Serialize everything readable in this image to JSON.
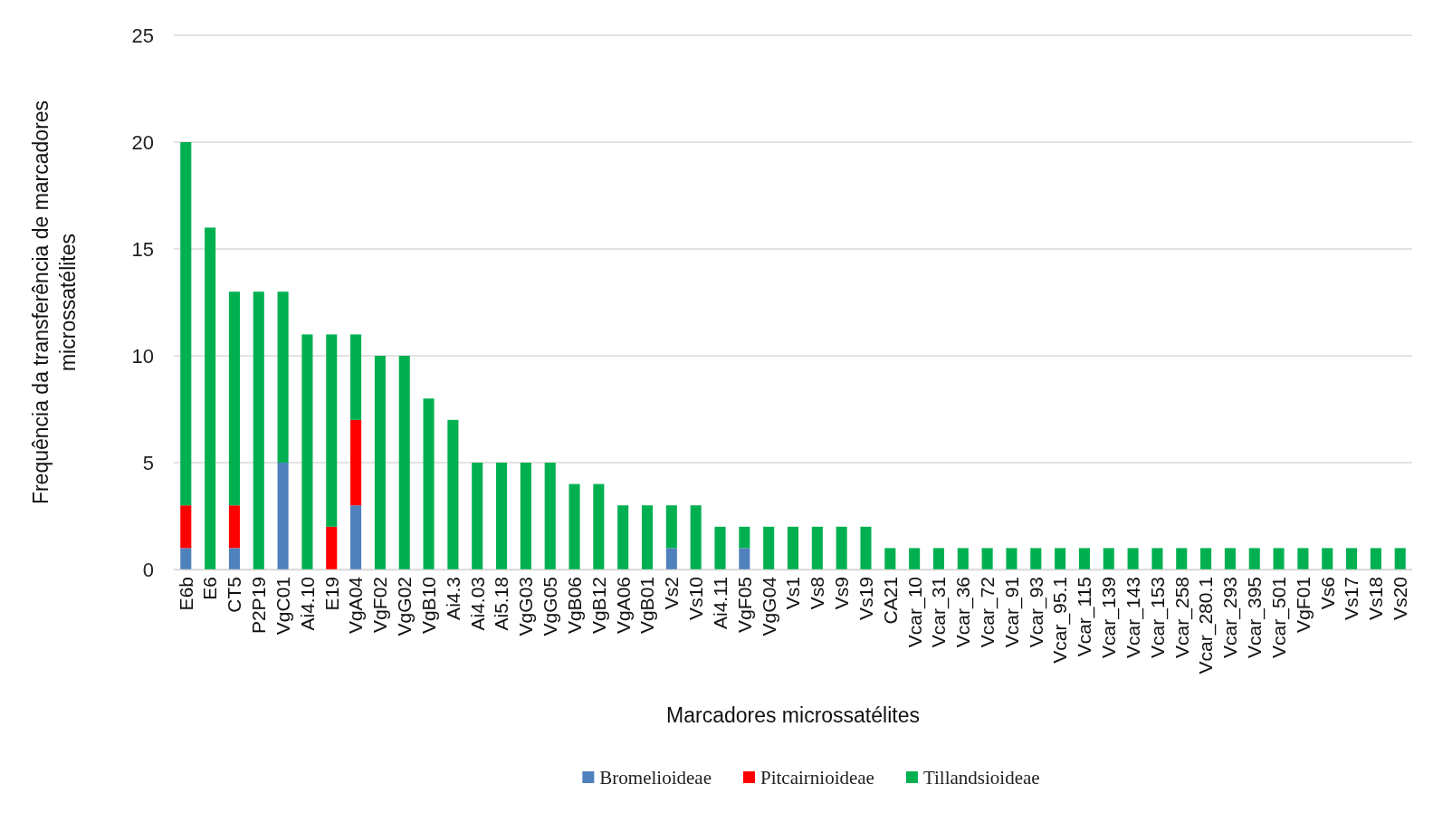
{
  "chart_data": {
    "type": "bar",
    "stacked": true,
    "xlabel": "Marcadores microssatélites",
    "ylabel": "Frequência da transferência de marcadores\nmicrossatélites",
    "categories": [
      "E6b",
      "E6",
      "CT5",
      "P2P19",
      "VgC01",
      "Ai4.10",
      "E19",
      "VgA04",
      "VgF02",
      "VgG02",
      "VgB10",
      "Ai4.3",
      "Ai4.03",
      "Ai5.18",
      "VgG03",
      "VgG05",
      "VgB06",
      "VgB12",
      "VgA06",
      "VgB01",
      "Vs2",
      "Vs10",
      "Ai4.11",
      "VgF05",
      "VgG04",
      "Vs1",
      "Vs8",
      "Vs9",
      "Vs19",
      "CA21",
      "Vcar_10",
      "Vcar_31",
      "Vcar_36",
      "Vcar_72",
      "Vcar_91",
      "Vcar_93",
      "Vcar_95.1",
      "Vcar_115",
      "Vcar_139",
      "Vcar_143",
      "Vcar_153",
      "Vcar_258",
      "Vcar_280.1",
      "Vcar_293",
      "Vcar_395",
      "Vcar_501",
      "VgF01",
      "Vs6",
      "Vs17",
      "Vs18",
      "Vs20"
    ],
    "series": [
      {
        "name": "Bromelioideae",
        "color": "#4f81bd",
        "values": [
          1,
          0,
          1,
          0,
          5,
          0,
          0,
          3,
          0,
          0,
          0,
          0,
          0,
          0,
          0,
          0,
          0,
          0,
          0,
          0,
          1,
          0,
          0,
          1,
          0,
          0,
          0,
          0,
          0,
          0,
          0,
          0,
          0,
          0,
          0,
          0,
          0,
          0,
          0,
          0,
          0,
          0,
          0,
          0,
          0,
          0,
          0,
          0,
          0,
          0,
          0
        ]
      },
      {
        "name": "Pitcairnioideae",
        "color": "#ff0000",
        "values": [
          2,
          0,
          2,
          0,
          0,
          0,
          2,
          4,
          0,
          0,
          0,
          0,
          0,
          0,
          0,
          0,
          0,
          0,
          0,
          0,
          0,
          0,
          0,
          0,
          0,
          0,
          0,
          0,
          0,
          0,
          0,
          0,
          0,
          0,
          0,
          0,
          0,
          0,
          0,
          0,
          0,
          0,
          0,
          0,
          0,
          0,
          0,
          0,
          0,
          0,
          0
        ]
      },
      {
        "name": "Tillandsioideae",
        "color": "#00b050",
        "values": [
          17,
          16,
          10,
          13,
          8,
          11,
          9,
          4,
          10,
          10,
          8,
          7,
          5,
          5,
          5,
          5,
          4,
          4,
          3,
          3,
          2,
          3,
          2,
          1,
          2,
          2,
          2,
          2,
          2,
          1,
          1,
          1,
          1,
          1,
          1,
          1,
          1,
          1,
          1,
          1,
          1,
          1,
          1,
          1,
          1,
          1,
          1,
          1,
          1,
          1,
          1
        ]
      }
    ],
    "ylim": [
      0,
      25
    ],
    "yticks": [
      0,
      5,
      10,
      15,
      20,
      25
    ],
    "grid": "y",
    "legend": "bottom"
  }
}
